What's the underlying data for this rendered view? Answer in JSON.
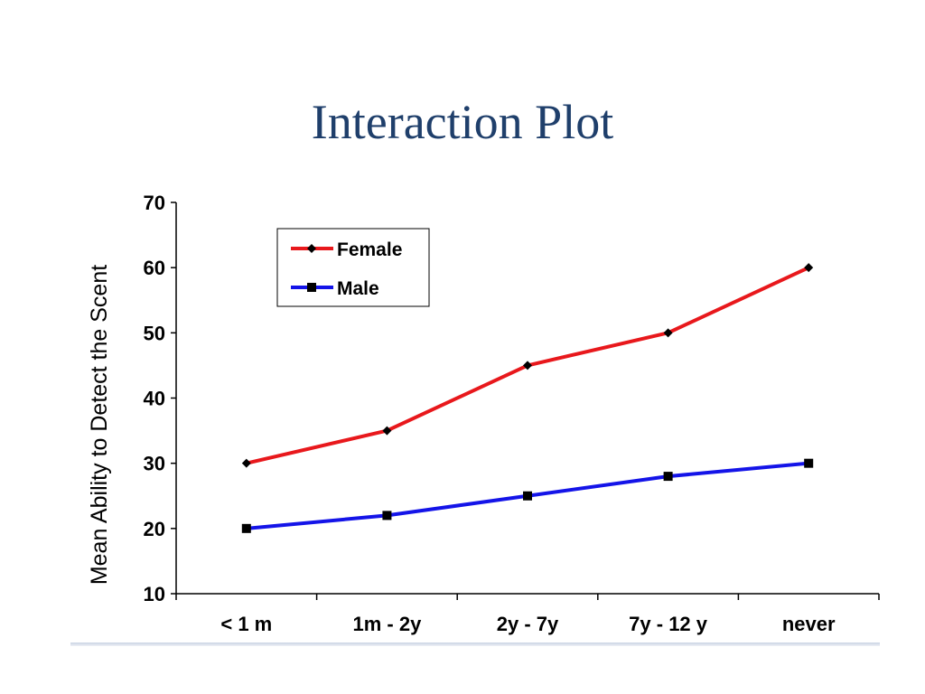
{
  "slide": {
    "title": "Interaction Plot"
  },
  "chart_data": {
    "type": "line",
    "title": "",
    "xlabel": "",
    "ylabel": "Mean Ability to Detect the Scent",
    "categories": [
      "< 1 m",
      "1m - 2y",
      "2y - 7y",
      "7y - 12 y",
      "never"
    ],
    "ylim": [
      10,
      70
    ],
    "yticks": [
      10,
      20,
      30,
      40,
      50,
      60,
      70
    ],
    "grid": false,
    "legend_position": "top-left",
    "series": [
      {
        "name": "Female",
        "values": [
          30,
          35,
          45,
          50,
          60
        ],
        "color": "#e8181c",
        "marker": "diamond"
      },
      {
        "name": "Male",
        "values": [
          20,
          22,
          25,
          28,
          30
        ],
        "color": "#1414e8",
        "marker": "square"
      }
    ]
  },
  "colors": {
    "title": "#1f3f6b",
    "axis": "#000000"
  }
}
